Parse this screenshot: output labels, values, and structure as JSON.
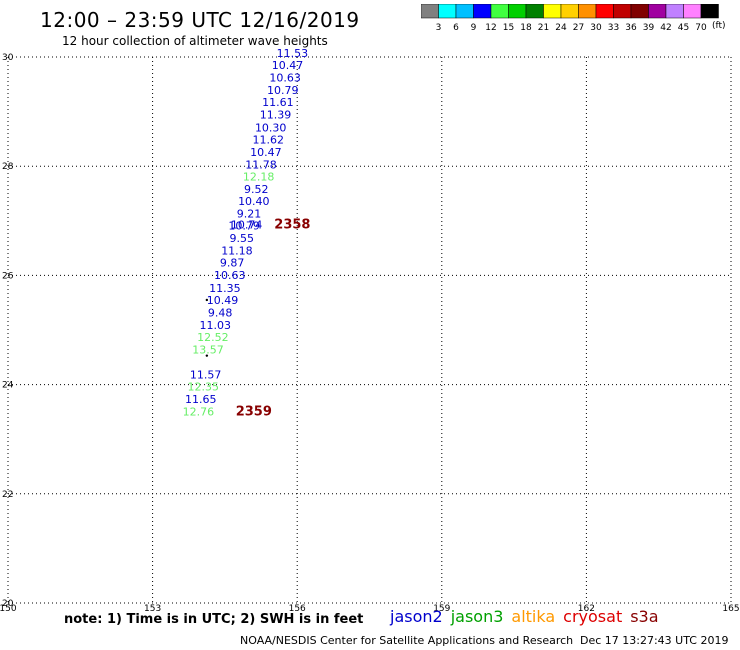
{
  "header": {
    "title": "12:00 – 23:59 UTC 12/16/2019",
    "subtitle": "12 hour collection of altimeter wave heights"
  },
  "colorbar": {
    "unit": "(ft)",
    "colors": [
      "#808080",
      "#00ffff",
      "#00c0ff",
      "#0000ff",
      "#40ff40",
      "#00d000",
      "#008000",
      "#ffff00",
      "#ffd000",
      "#ff9000",
      "#ff0000",
      "#c00000",
      "#800000",
      "#a000a0",
      "#c080ff",
      "#ff80ff",
      "#000000"
    ],
    "labels": [
      "3",
      "6",
      "9",
      "12",
      "15",
      "18",
      "21",
      "24",
      "27",
      "30",
      "33",
      "36",
      "39",
      "42",
      "45",
      "70"
    ]
  },
  "footer": {
    "note": "note: 1) Time is in UTC; 2) SWH is in feet",
    "credit": "NOAA/NESDIS Center for Satellite Applications and Research",
    "timestamp": "Dec 17 13:27:43 UTC 2019"
  },
  "legend": [
    {
      "name": "jason2",
      "color": "#0000cc"
    },
    {
      "name": "jason3",
      "color": "#00a000"
    },
    {
      "name": "altika",
      "color": "#ff9900"
    },
    {
      "name": "cryosat",
      "color": "#dd0000"
    },
    {
      "name": "s3a",
      "color": "#880000"
    }
  ],
  "chart_data": {
    "type": "scatter",
    "xlim": [
      150,
      165
    ],
    "ylim": [
      20,
      30
    ],
    "x_ticks": [
      "150",
      "153",
      "156",
      "159",
      "162",
      "165"
    ],
    "y_ticks": [
      "20",
      "22",
      "24",
      "26",
      "28",
      "30"
    ],
    "grid": true,
    "series": [
      {
        "name": "jason2",
        "color": "#0000cc",
        "points": [
          {
            "x": 155.9,
            "y": 30.0,
            "label": "11.53"
          },
          {
            "x": 155.8,
            "y": 29.78,
            "label": "10.47"
          },
          {
            "x": 155.75,
            "y": 29.55,
            "label": "10.63"
          },
          {
            "x": 155.7,
            "y": 29.32,
            "label": "10.79"
          },
          {
            "x": 155.6,
            "y": 29.1,
            "label": "11.61"
          },
          {
            "x": 155.55,
            "y": 28.87,
            "label": "11.39"
          },
          {
            "x": 155.45,
            "y": 28.64,
            "label": "10.30"
          },
          {
            "x": 155.4,
            "y": 28.42,
            "label": "11.62"
          },
          {
            "x": 155.35,
            "y": 28.19,
            "label": "10.47"
          },
          {
            "x": 155.25,
            "y": 27.96,
            "label": "11.78"
          },
          {
            "x": 155.15,
            "y": 27.51,
            "label": "9.52"
          },
          {
            "x": 155.1,
            "y": 27.29,
            "label": "10.40"
          },
          {
            "x": 155.0,
            "y": 27.06,
            "label": "9.21"
          },
          {
            "x": 154.95,
            "y": 26.86,
            "label": "10.74"
          },
          {
            "x": 154.9,
            "y": 26.84,
            "label": "10.79"
          },
          {
            "x": 154.85,
            "y": 26.61,
            "label": "9.55"
          },
          {
            "x": 154.75,
            "y": 26.38,
            "label": "11.18"
          },
          {
            "x": 154.65,
            "y": 26.16,
            "label": "9.87"
          },
          {
            "x": 154.6,
            "y": 25.93,
            "label": "10.63"
          },
          {
            "x": 154.5,
            "y": 25.7,
            "label": "11.35"
          },
          {
            "x": 154.45,
            "y": 25.48,
            "label": "10.49"
          },
          {
            "x": 154.4,
            "y": 25.25,
            "label": "9.48"
          },
          {
            "x": 154.3,
            "y": 25.02,
            "label": "11.03"
          },
          {
            "x": 154.1,
            "y": 24.11,
            "label": "11.57"
          },
          {
            "x": 154.0,
            "y": 23.66,
            "label": "11.65"
          }
        ]
      },
      {
        "name": "jason3",
        "color": "#66ee66",
        "points": [
          {
            "x": 155.2,
            "y": 27.74,
            "label": "12.18"
          },
          {
            "x": 154.25,
            "y": 24.8,
            "label": "12.52"
          },
          {
            "x": 154.15,
            "y": 24.57,
            "label": "13.57"
          },
          {
            "x": 154.05,
            "y": 23.89,
            "label": "12.35"
          },
          {
            "x": 153.95,
            "y": 23.43,
            "label": "12.76"
          }
        ]
      },
      {
        "name": "s3a",
        "color": "#880000",
        "points": [
          {
            "x": 155.9,
            "y": 26.86,
            "label": "2358"
          },
          {
            "x": 155.1,
            "y": 23.43,
            "label": "2359"
          }
        ]
      }
    ]
  }
}
